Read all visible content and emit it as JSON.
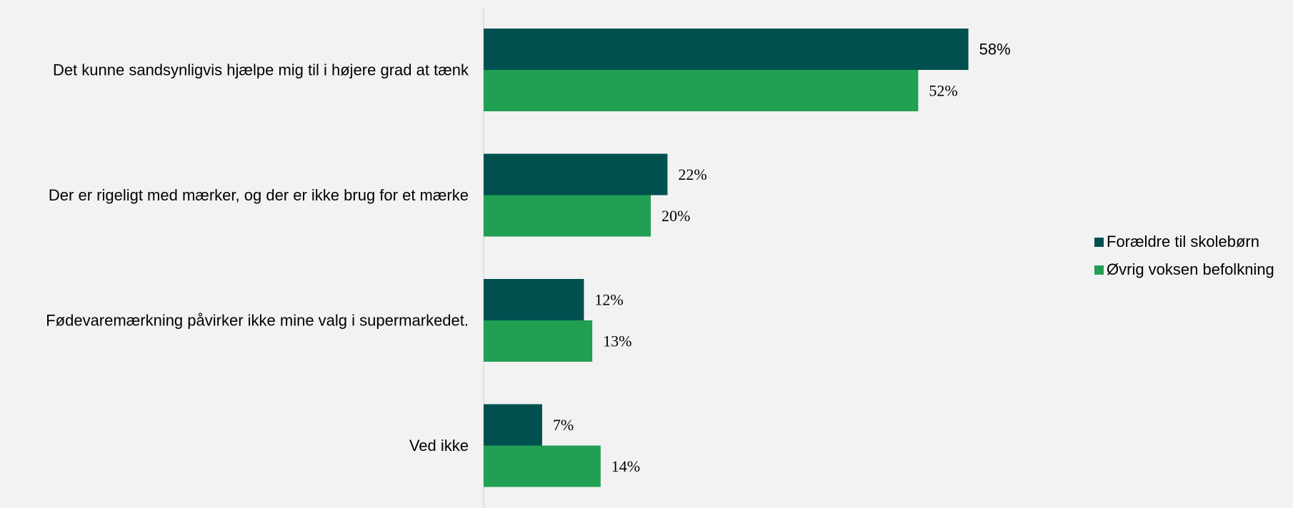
{
  "chart_data": {
    "type": "bar",
    "orientation": "horizontal",
    "categories": [
      "Det kunne sandsynligvis hjælpe mig til i højere grad at tænk",
      "Der er rigeligt med mærker, og der er ikke brug for et mærke",
      "Fødevaremærkning påvirker ikke mine valg i supermarkedet.",
      "Ved ikke"
    ],
    "series": [
      {
        "name": "Forældre til skolebørn",
        "color": "#005050",
        "values": [
          58,
          22,
          12,
          7
        ],
        "labels": [
          "58%",
          "22%",
          "12%",
          "7%"
        ]
      },
      {
        "name": "Øvrig voksen befolkning",
        "color": "#219f53",
        "values": [
          52,
          20,
          13,
          14
        ],
        "labels": [
          "52%",
          "20%",
          "13%",
          "14%"
        ]
      }
    ],
    "value_unit": "%",
    "xlim": [
      0,
      58
    ],
    "grid": false,
    "legend_position": "right"
  }
}
